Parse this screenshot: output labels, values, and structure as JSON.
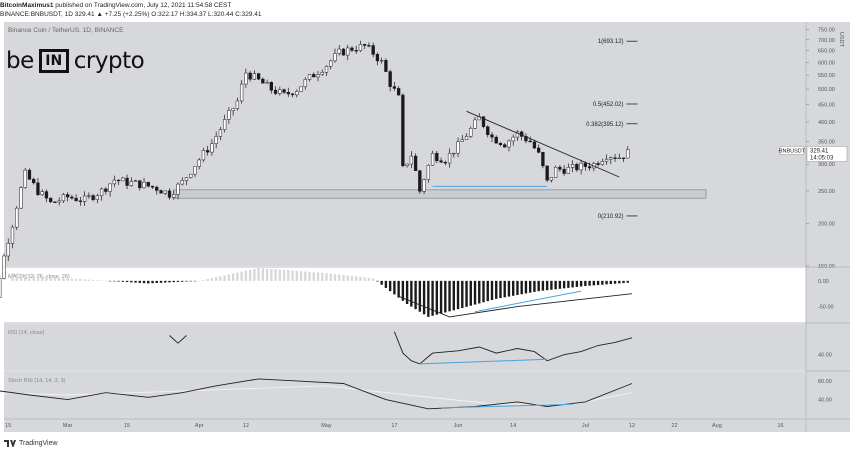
{
  "header": {
    "author": "BitcoinMaximus1",
    "published": " published on TradingView.com, July 12, 2021 11:54:58 CEST",
    "symbol_line": "BINANCE:BNBUSDT, 1D 329.41 ▲ +7.25 (+2.25%) O:322.17 H:334.37 L:320.44 C:329.41"
  },
  "chart_title": "Binance Coin / TetherUS, 1D, BINANCE",
  "logo": {
    "left": "be",
    "box": "IN",
    "right": "crypto"
  },
  "footer": {
    "brand": "TradingView"
  },
  "colors": {
    "background": "#d6d8dc",
    "candle": "#1a1a1a",
    "candle_up_body": "#ffffff",
    "support_line": "#4aa3df",
    "support_box": "#8a8f98",
    "axis_text": "#555555"
  },
  "chart_data": {
    "type": "candlestick",
    "symbol": "BNBUSDT",
    "timeframe": "1D",
    "price_scale": "log",
    "last_price": 329.41,
    "countdown": "14:05:03",
    "currency_label": "USDT",
    "price_ticks": [
      750,
      700,
      650,
      600,
      550,
      500,
      450,
      400,
      350,
      300,
      250,
      200,
      150
    ],
    "x_ticks": [
      {
        "date": "2021-02-15",
        "label": "15"
      },
      {
        "date": "2021-03-01",
        "label": "Mar"
      },
      {
        "date": "2021-03-15",
        "label": "15"
      },
      {
        "date": "2021-04-01",
        "label": "Apr"
      },
      {
        "date": "2021-04-12",
        "label": "12"
      },
      {
        "date": "2021-05-01",
        "label": "May"
      },
      {
        "date": "2021-05-17",
        "label": "17"
      },
      {
        "date": "2021-06-01",
        "label": "Jun"
      },
      {
        "date": "2021-06-14",
        "label": "14"
      },
      {
        "date": "2021-07-01",
        "label": "Jul"
      },
      {
        "date": "2021-07-12",
        "label": "12"
      },
      {
        "date": "2021-07-22",
        "label": "22"
      },
      {
        "date": "2021-08-01",
        "label": "Aug"
      },
      {
        "date": "2021-08-16",
        "label": "16"
      }
    ],
    "x_range": [
      "2021-02-14",
      "2021-08-22"
    ],
    "ohlc_close_path": [
      [
        "2021-02-08",
        75
      ],
      [
        "2021-02-12",
        120
      ],
      [
        "2021-02-16",
        200
      ],
      [
        "2021-02-19",
        280
      ],
      [
        "2021-02-22",
        250
      ],
      [
        "2021-02-25",
        230
      ],
      [
        "2021-03-01",
        240
      ],
      [
        "2021-03-05",
        235
      ],
      [
        "2021-03-09",
        250
      ],
      [
        "2021-03-12",
        270
      ],
      [
        "2021-03-15",
        265
      ],
      [
        "2021-03-18",
        262
      ],
      [
        "2021-03-22",
        255
      ],
      [
        "2021-03-25",
        245
      ],
      [
        "2021-03-28",
        265
      ],
      [
        "2021-04-01",
        310
      ],
      [
        "2021-04-04",
        345
      ],
      [
        "2021-04-07",
        400
      ],
      [
        "2021-04-10",
        460
      ],
      [
        "2021-04-12",
        560
      ],
      [
        "2021-04-15",
        530
      ],
      [
        "2021-04-18",
        500
      ],
      [
        "2021-04-21",
        480
      ],
      [
        "2021-04-24",
        500
      ],
      [
        "2021-04-27",
        540
      ],
      [
        "2021-05-01",
        590
      ],
      [
        "2021-05-04",
        640
      ],
      [
        "2021-05-07",
        660
      ],
      [
        "2021-05-10",
        670
      ],
      [
        "2021-05-12",
        640
      ],
      [
        "2021-05-14",
        600
      ],
      [
        "2021-05-16",
        520
      ],
      [
        "2021-05-18",
        470
      ],
      [
        "2021-05-19",
        290
      ],
      [
        "2021-05-21",
        320
      ],
      [
        "2021-05-23",
        250
      ],
      [
        "2021-05-26",
        320
      ],
      [
        "2021-05-29",
        310
      ],
      [
        "2021-06-01",
        340
      ],
      [
        "2021-06-04",
        380
      ],
      [
        "2021-06-06",
        410
      ],
      [
        "2021-06-09",
        360
      ],
      [
        "2021-06-12",
        345
      ],
      [
        "2021-06-15",
        370
      ],
      [
        "2021-06-18",
        350
      ],
      [
        "2021-06-20",
        320
      ],
      [
        "2021-06-22",
        265
      ],
      [
        "2021-06-24",
        290
      ],
      [
        "2021-06-27",
        290
      ],
      [
        "2021-06-30",
        295
      ],
      [
        "2021-07-03",
        300
      ],
      [
        "2021-07-06",
        320
      ],
      [
        "2021-07-09",
        315
      ],
      [
        "2021-07-12",
        329.41
      ]
    ],
    "key_levels": {
      "support_zone": [
        238,
        252
      ],
      "fib_levels": [
        {
          "label": "1(693.12)",
          "value": 693.12
        },
        {
          "label": "0.5(452.02)",
          "value": 452.02
        },
        {
          "label": "0.382(395.12)",
          "value": 395.12
        },
        {
          "label": "0(210.92)",
          "value": 210.92
        }
      ],
      "descending_resistance": [
        [
          "2021-06-03",
          430
        ],
        [
          "2021-07-09",
          275
        ]
      ],
      "support_trendline": [
        [
          "2021-05-26",
          258
        ],
        [
          "2021-06-22",
          258
        ]
      ]
    },
    "macd": {
      "label": "MACD (12, 26, close, 26)",
      "y_ticks": [
        0.0,
        -50.0
      ],
      "y_tick_labels": [
        "0.00",
        "-50.00"
      ],
      "hist": [
        [
          "2021-02-16",
          15
        ],
        [
          "2021-03-01",
          5
        ],
        [
          "2021-03-20",
          -5
        ],
        [
          "2021-04-01",
          0
        ],
        [
          "2021-04-15",
          25
        ],
        [
          "2021-05-01",
          15
        ],
        [
          "2021-05-12",
          5
        ],
        [
          "2021-05-20",
          -45
        ],
        [
          "2021-05-25",
          -70
        ],
        [
          "2021-06-01",
          -55
        ],
        [
          "2021-06-10",
          -35
        ],
        [
          "2021-06-20",
          -20
        ],
        [
          "2021-07-01",
          -10
        ],
        [
          "2021-07-12",
          -3
        ]
      ],
      "signal_line": [
        [
          "2021-05-18",
          -30
        ],
        [
          "2021-05-30",
          -70
        ],
        [
          "2021-06-15",
          -50
        ],
        [
          "2021-07-01",
          -35
        ],
        [
          "2021-07-12",
          -25
        ]
      ],
      "bullish_divergence_line": [
        [
          "2021-06-05",
          -60
        ],
        [
          "2021-06-30",
          -20
        ]
      ]
    },
    "rsi": {
      "label": "RSI (14, close)",
      "y_ticks": [
        40
      ],
      "y_tick_labels": [
        "40.00"
      ],
      "series": [
        [
          "2021-03-25",
          65
        ],
        [
          "2021-03-27",
          55
        ],
        [
          "2021-03-29",
          65
        ],
        [
          "2021-05-17",
          70
        ],
        [
          "2021-05-19",
          42
        ],
        [
          "2021-05-21",
          32
        ],
        [
          "2021-05-23",
          28
        ],
        [
          "2021-05-26",
          42
        ],
        [
          "2021-06-01",
          45
        ],
        [
          "2021-06-06",
          50
        ],
        [
          "2021-06-10",
          42
        ],
        [
          "2021-06-15",
          48
        ],
        [
          "2021-06-19",
          44
        ],
        [
          "2021-06-22",
          32
        ],
        [
          "2021-06-26",
          40
        ],
        [
          "2021-06-30",
          44
        ],
        [
          "2021-07-04",
          52
        ],
        [
          "2021-07-08",
          56
        ],
        [
          "2021-07-12",
          62
        ]
      ],
      "divergence_line": [
        [
          "2021-05-23",
          28
        ],
        [
          "2021-06-22",
          34
        ]
      ]
    },
    "stoch": {
      "label": "Stoch RSI (14, 14, 3, 3)",
      "y_ticks": [
        80,
        40
      ],
      "y_tick_labels": [
        "80.00",
        "40.00"
      ],
      "k": [
        [
          "2021-02-12",
          60
        ],
        [
          "2021-02-20",
          50
        ],
        [
          "2021-03-01",
          40
        ],
        [
          "2021-03-10",
          55
        ],
        [
          "2021-03-20",
          45
        ],
        [
          "2021-03-28",
          55
        ],
        [
          "2021-04-05",
          70
        ],
        [
          "2021-04-15",
          85
        ],
        [
          "2021-04-25",
          80
        ],
        [
          "2021-05-05",
          75
        ],
        [
          "2021-05-15",
          40
        ],
        [
          "2021-05-25",
          20
        ],
        [
          "2021-06-05",
          25
        ],
        [
          "2021-06-15",
          35
        ],
        [
          "2021-06-22",
          25
        ],
        [
          "2021-07-01",
          35
        ],
        [
          "2021-07-12",
          75
        ]
      ],
      "d": [
        [
          "2021-02-12",
          55
        ],
        [
          "2021-03-01",
          50
        ],
        [
          "2021-04-01",
          60
        ],
        [
          "2021-05-01",
          70
        ],
        [
          "2021-05-20",
          50
        ],
        [
          "2021-06-10",
          30
        ],
        [
          "2021-06-28",
          30
        ],
        [
          "2021-07-12",
          55
        ]
      ],
      "divergence_line": [
        [
          "2021-05-28",
          22
        ],
        [
          "2021-06-28",
          30
        ]
      ]
    }
  }
}
